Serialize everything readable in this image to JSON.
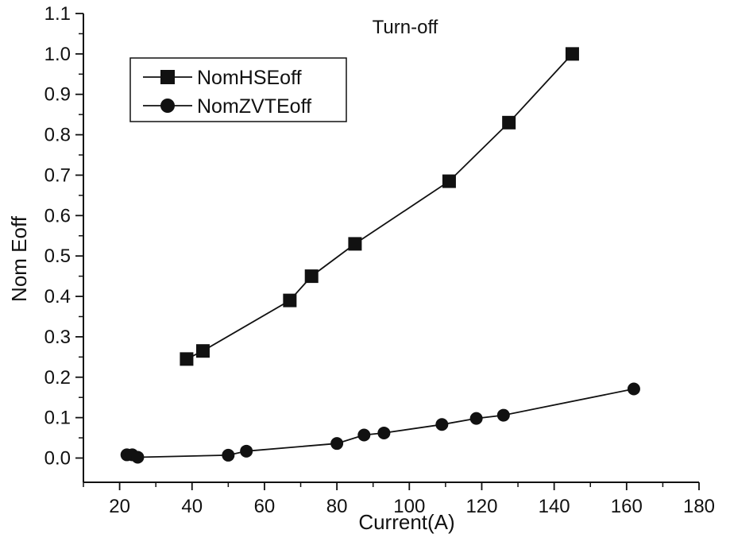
{
  "chart_data": {
    "type": "line",
    "title": "Turn-off",
    "xlabel": "Current(A)",
    "ylabel": "Nom Eoff",
    "xlim": [
      10,
      180
    ],
    "ylim": [
      -0.06,
      1.1
    ],
    "xticks": [
      "20",
      "40",
      "60",
      "80",
      "100",
      "120",
      "140",
      "160",
      "180"
    ],
    "yticks": [
      "0.0",
      "0.1",
      "0.2",
      "0.3",
      "0.4",
      "0.5",
      "0.6",
      "0.7",
      "0.8",
      "0.9",
      "1.0",
      "1.1"
    ],
    "grid": false,
    "legend_position": "top-left",
    "series": [
      {
        "name": "NomHSEoff",
        "marker": "square",
        "x": [
          38.5,
          43,
          67,
          73,
          85,
          111,
          127.5,
          145
        ],
        "y": [
          0.245,
          0.265,
          0.39,
          0.45,
          0.53,
          0.685,
          0.83,
          1.0
        ]
      },
      {
        "name": "NomZVTEoff",
        "marker": "circle",
        "x": [
          22,
          23.5,
          25,
          50,
          55,
          80,
          87.5,
          93,
          109,
          118.5,
          126,
          162
        ],
        "y": [
          0.008,
          0.008,
          0.002,
          0.007,
          0.017,
          0.036,
          0.057,
          0.062,
          0.083,
          0.098,
          0.106,
          0.171
        ]
      }
    ],
    "colors": {
      "line": "#111111",
      "marker": "#111111"
    }
  }
}
